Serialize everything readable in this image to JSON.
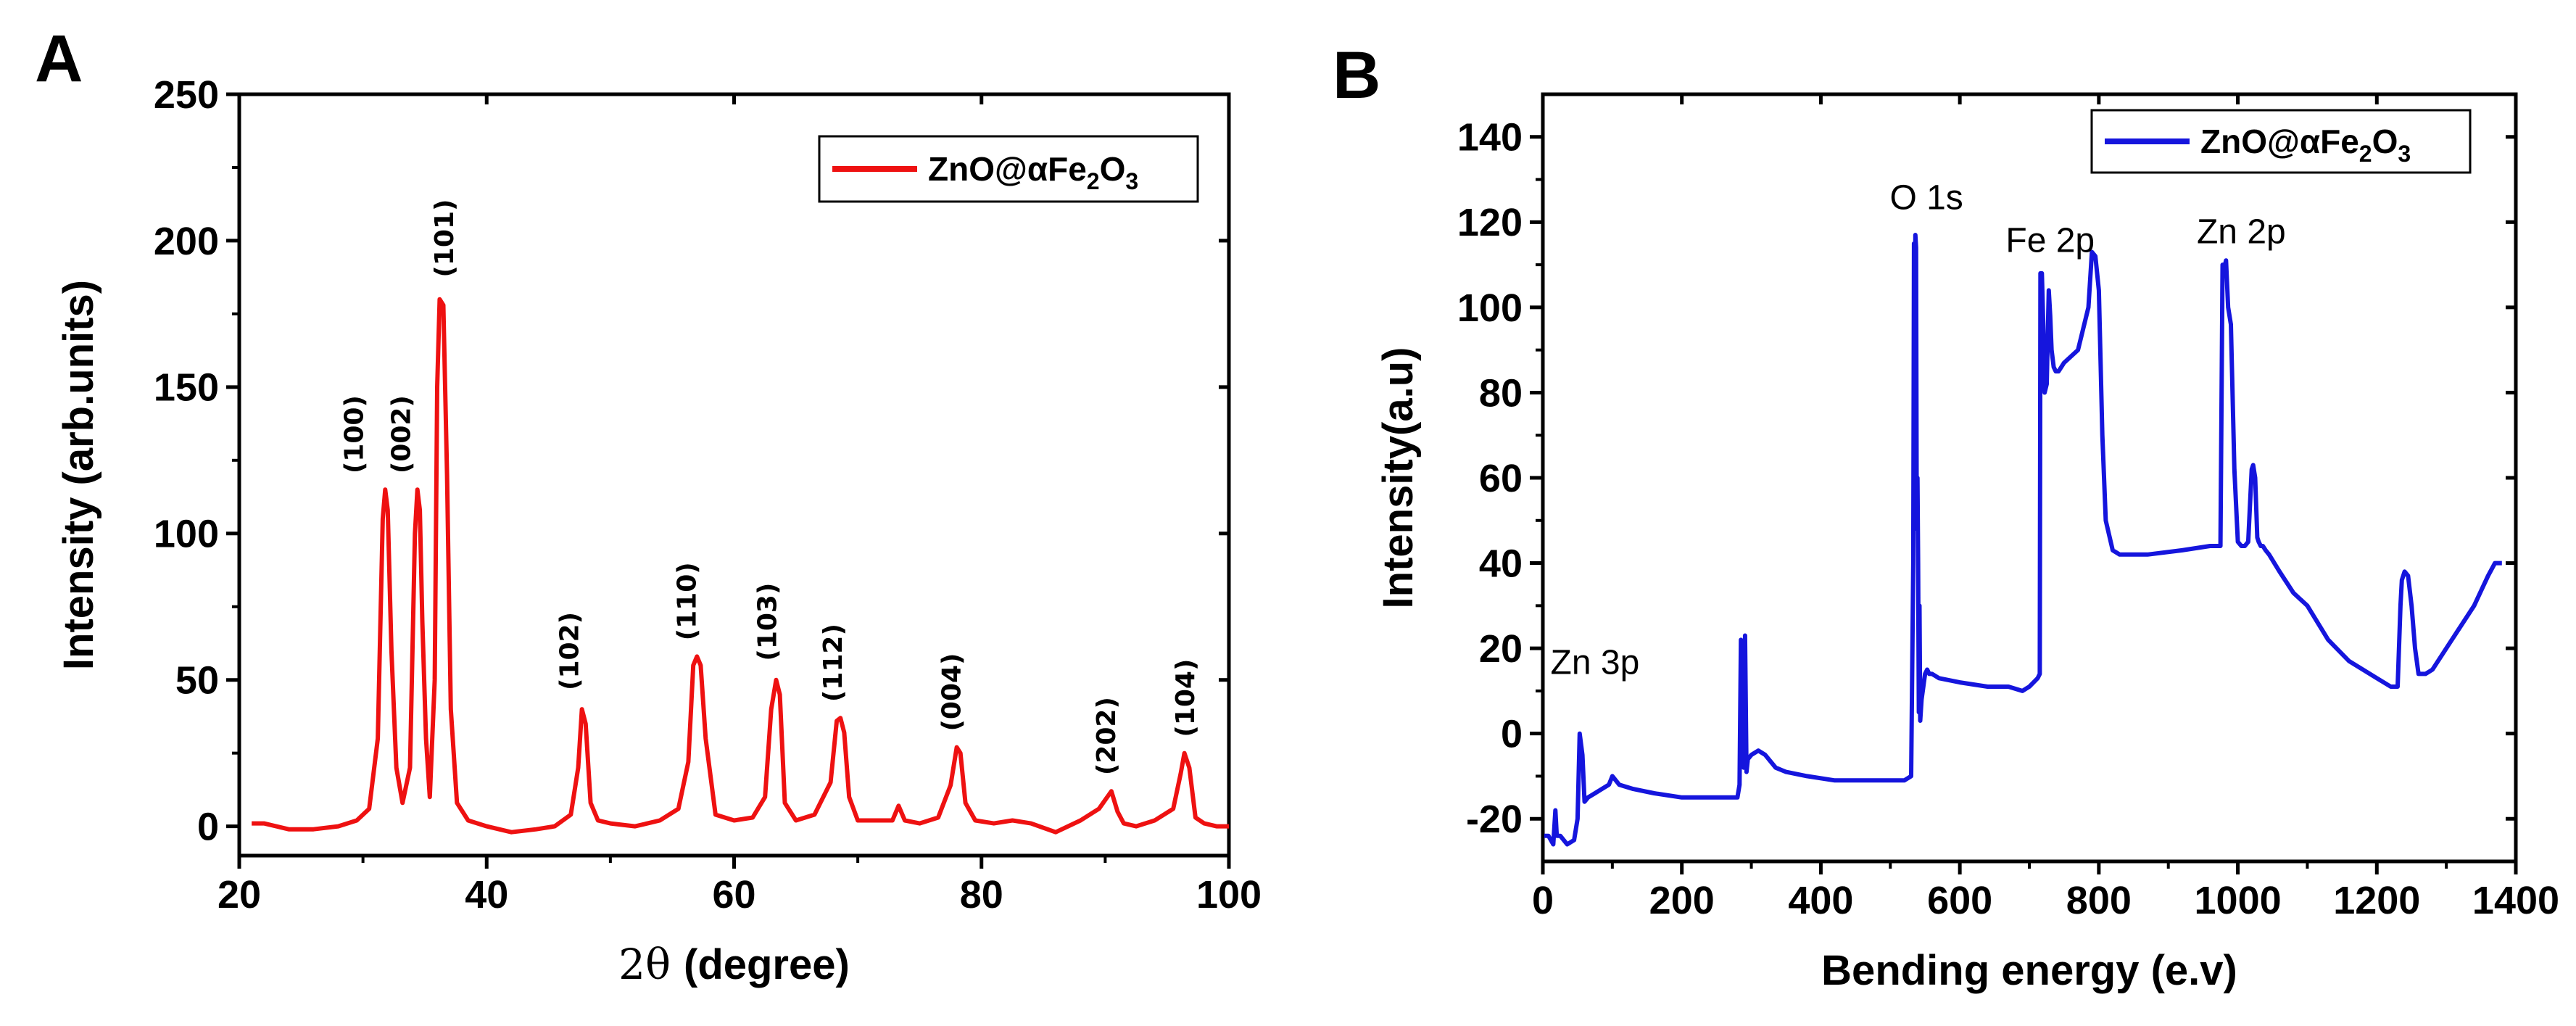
{
  "panels": {
    "a": {
      "letter": "A"
    },
    "b": {
      "letter": "B"
    }
  },
  "chart_data": [
    {
      "id": "xrd",
      "type": "line",
      "xlabel_theta": "2θ",
      "xlabel_rest": "(degree)",
      "ylabel": "Intensity (arb.units)",
      "xlim": [
        20,
        100
      ],
      "ylim": [
        -10,
        250
      ],
      "xticks": [
        20,
        40,
        60,
        80,
        100
      ],
      "yticks": [
        0,
        50,
        100,
        150,
        200,
        250
      ],
      "legend_placement": "top-right",
      "grid": false,
      "color": "#ee1111",
      "series": [
        {
          "name": "ZnO@αFe2O3",
          "legend_parts": [
            "ZnO@αFe",
            "2",
            "O",
            "3"
          ],
          "x": [
            21,
            22,
            24,
            26,
            28,
            29.5,
            30.5,
            31.2,
            31.6,
            31.8,
            32.0,
            32.3,
            32.7,
            33.2,
            33.8,
            34.2,
            34.4,
            34.6,
            34.8,
            35.1,
            35.4,
            35.8,
            36.0,
            36.2,
            36.5,
            36.8,
            37.1,
            37.6,
            38.5,
            40,
            42,
            44,
            45.5,
            46.8,
            47.4,
            47.7,
            48.0,
            48.4,
            49,
            50,
            52,
            54,
            55.5,
            56.3,
            56.7,
            57.0,
            57.3,
            57.7,
            58.5,
            60,
            61.5,
            62.5,
            63.0,
            63.4,
            63.7,
            64.1,
            65,
            66.5,
            67.8,
            68.3,
            68.6,
            68.9,
            69.3,
            70,
            71.5,
            72.8,
            73.3,
            73.8,
            75,
            76.5,
            77.5,
            78.0,
            78.3,
            78.7,
            79.5,
            81,
            82.5,
            84,
            86,
            88,
            89.5,
            90.5,
            91.0,
            91.5,
            92.5,
            94,
            95.5,
            96.1,
            96.4,
            96.8,
            97.3,
            98,
            99,
            100
          ],
          "y": [
            1,
            1,
            -1,
            -1,
            0,
            2,
            6,
            30,
            105,
            115,
            108,
            60,
            20,
            8,
            20,
            100,
            115,
            108,
            70,
            30,
            10,
            50,
            150,
            180,
            178,
            120,
            40,
            8,
            2,
            0,
            -2,
            -1,
            0,
            4,
            20,
            40,
            35,
            8,
            2,
            1,
            0,
            2,
            6,
            22,
            55,
            58,
            55,
            30,
            4,
            2,
            3,
            10,
            40,
            50,
            45,
            8,
            2,
            4,
            15,
            36,
            37,
            32,
            10,
            2,
            2,
            2,
            7,
            2,
            1,
            3,
            14,
            27,
            25,
            8,
            2,
            1,
            2,
            1,
            -2,
            2,
            6,
            12,
            5,
            1,
            0,
            2,
            6,
            18,
            25,
            20,
            3,
            1,
            0,
            0
          ]
        }
      ],
      "annotations": [
        {
          "text": "(100)",
          "x": 30.0,
          "y": 116
        },
        {
          "text": "(002)",
          "x": 33.8,
          "y": 116
        },
        {
          "text": "(101)",
          "x": 37.3,
          "y": 183
        },
        {
          "text": "(102)",
          "x": 47.4,
          "y": 42
        },
        {
          "text": "(110)",
          "x": 56.9,
          "y": 59
        },
        {
          "text": "(103)",
          "x": 63.4,
          "y": 52
        },
        {
          "text": "(112)",
          "x": 68.7,
          "y": 38
        },
        {
          "text": "(004)",
          "x": 78.3,
          "y": 28
        },
        {
          "text": "(202)",
          "x": 90.8,
          "y": 13
        },
        {
          "text": "(104)",
          "x": 97.2,
          "y": 26
        }
      ]
    },
    {
      "id": "xps",
      "type": "line",
      "xlabel": "Bending energy (e.v)",
      "ylabel": "Intensity(a.u)",
      "xlim": [
        0,
        1400
      ],
      "ylim": [
        -30,
        150
      ],
      "xticks": [
        0,
        200,
        400,
        600,
        800,
        1000,
        1200,
        1400
      ],
      "yticks": [
        -20,
        0,
        20,
        40,
        60,
        80,
        100,
        120,
        140
      ],
      "legend_placement": "top-right",
      "grid": false,
      "color": "#1515dd",
      "series": [
        {
          "name": "ZnO@αFe2O3",
          "legend_parts": [
            "ZnO@αFe",
            "2",
            "O",
            "3"
          ],
          "x": [
            2,
            8,
            15,
            18,
            20,
            25,
            35,
            45,
            50,
            53,
            57,
            60,
            65,
            75,
            85,
            95,
            100,
            110,
            130,
            160,
            200,
            240,
            270,
            280,
            283,
            285,
            287,
            289,
            291,
            293,
            295,
            300,
            310,
            320,
            335,
            350,
            380,
            420,
            480,
            520,
            530,
            533,
            534,
            535,
            536,
            537,
            538,
            539,
            540,
            541,
            542,
            543,
            545,
            550,
            553,
            556,
            560,
            570,
            600,
            640,
            670,
            690,
            700,
            712,
            715,
            716,
            718,
            720,
            722,
            725,
            728,
            730,
            732,
            735,
            738,
            742,
            746,
            750,
            770,
            785,
            790,
            795,
            800,
            805,
            810,
            820,
            830,
            870,
            920,
            960,
            970,
            975,
            978,
            980,
            983,
            986,
            990,
            995,
            1000,
            1005,
            1010,
            1015,
            1020,
            1022,
            1025,
            1028,
            1030,
            1033,
            1036,
            1040,
            1045,
            1060,
            1080,
            1100,
            1130,
            1160,
            1200,
            1220,
            1230,
            1234,
            1236,
            1240,
            1245,
            1250,
            1255,
            1260,
            1270,
            1280,
            1300,
            1320,
            1340,
            1360,
            1370,
            1375,
            1380
          ],
          "y": [
            -24,
            -24,
            -26,
            -18,
            -24,
            -24,
            -26,
            -25,
            -20,
            0,
            -5,
            -16,
            -15,
            -14,
            -13,
            -12,
            -10,
            -12,
            -13,
            -14,
            -15,
            -15,
            -15,
            -15,
            -12,
            22,
            5,
            -8,
            23,
            -9,
            -6,
            -5,
            -4,
            -5,
            -8,
            -9,
            -10,
            -11,
            -11,
            -11,
            -10,
            40,
            115,
            94,
            117,
            114,
            48,
            60,
            40,
            5,
            30,
            3,
            8,
            14,
            15,
            14,
            14,
            13,
            12,
            11,
            11,
            10,
            11,
            13,
            14,
            108,
            108,
            96,
            80,
            82,
            104,
            98,
            90,
            86,
            85,
            85,
            86,
            87,
            90,
            100,
            113,
            112,
            104,
            70,
            50,
            43,
            42,
            42,
            43,
            44,
            44,
            44,
            110,
            109,
            111,
            100,
            96,
            62,
            45,
            44,
            44,
            45,
            62,
            63,
            60,
            46,
            45,
            44,
            44,
            43,
            42,
            38,
            33,
            30,
            22,
            17,
            13,
            11,
            11,
            30,
            36,
            38,
            37,
            30,
            20,
            14,
            14,
            15,
            20,
            25,
            30,
            37,
            40,
            40,
            40
          ]
        }
      ],
      "annotations": [
        {
          "text": "Zn 3p",
          "x": 75,
          "y": 14
        },
        {
          "text": "O 1s",
          "x": 552,
          "y": 123
        },
        {
          "text": "Fe 2p",
          "x": 730,
          "y": 113
        },
        {
          "text": "Zn 2p",
          "x": 1005,
          "y": 115
        }
      ]
    }
  ]
}
